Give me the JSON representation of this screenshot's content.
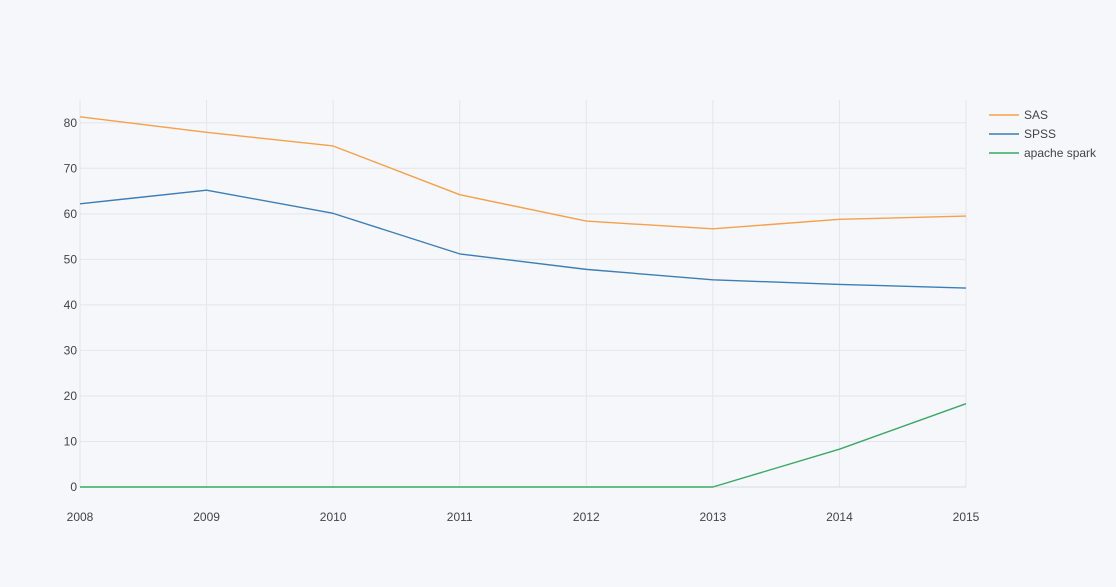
{
  "chart_data": {
    "type": "line",
    "title": "",
    "xlabel": "",
    "ylabel": "",
    "x": [
      2008,
      2009,
      2010,
      2011,
      2012,
      2013,
      2014,
      2015
    ],
    "xlim": [
      2008,
      2015
    ],
    "ylim": [
      0,
      85
    ],
    "xticks": [
      "2008",
      "2009",
      "2010",
      "2011",
      "2012",
      "2013",
      "2014",
      "2015"
    ],
    "yticks": [
      0,
      10,
      20,
      30,
      40,
      50,
      60,
      70,
      80
    ],
    "grid": true,
    "legend_position": "top-right",
    "series": [
      {
        "name": "SAS",
        "color": "#f5a04a",
        "values": [
          81.3,
          77.9,
          74.9,
          64.2,
          58.4,
          56.7,
          58.8,
          59.5
        ]
      },
      {
        "name": "SPSS",
        "color": "#3c7db5",
        "values": [
          62.2,
          65.2,
          60.1,
          51.2,
          47.8,
          45.5,
          44.5,
          43.7
        ]
      },
      {
        "name": "apache spark",
        "color": "#3aa864",
        "values": [
          0,
          0,
          0,
          0,
          0,
          0,
          8.3,
          18.3
        ]
      }
    ]
  }
}
